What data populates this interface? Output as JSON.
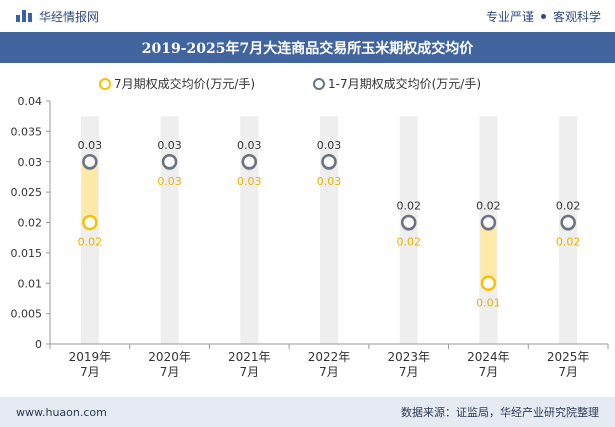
{
  "header": {
    "brand": "华经情报网",
    "tags": [
      "专业严谨",
      "客观科学"
    ]
  },
  "footer": {
    "website": "www.huaon.com",
    "source": "数据来源：证监局，华经产业研究院整理"
  },
  "colors": {
    "july": "#f5c400",
    "ytd": "#ffffff",
    "ytd_stroke": "#6b7286",
    "column": "#eeeeee",
    "band": "#fde9a8",
    "title_band": "#41649f",
    "footer": "#e6ebf3"
  },
  "chart_data": {
    "type": "scatter",
    "title": "2019-2025年7月大连商品交易所玉米期权成交均价",
    "categories": [
      "2019年\n7月",
      "2020年\n7月",
      "2021年\n7月",
      "2022年\n7月",
      "2023年\n7月",
      "2024年\n7月",
      "2025年\n7月"
    ],
    "series": [
      {
        "name": "7月期权成交均价(万元/手)",
        "values": [
          0.02,
          0.03,
          0.03,
          0.03,
          0.02,
          0.01,
          0.02
        ],
        "labels": [
          "0.02",
          "0.03",
          "0.03",
          "0.03",
          "0.02",
          "0.01",
          "0.02"
        ]
      },
      {
        "name": "1-7月期权成交均价(万元/手)",
        "values": [
          0.03,
          0.03,
          0.03,
          0.03,
          0.02,
          0.02,
          0.02
        ],
        "labels": [
          "0.03",
          "0.03",
          "0.03",
          "0.03",
          "0.02",
          "0.02",
          "0.02"
        ]
      }
    ],
    "y_ticks": [
      "0",
      "0.005",
      "0.01",
      "0.015",
      "0.02",
      "0.025",
      "0.03",
      "0.035",
      "0.04"
    ],
    "ylim": [
      0,
      0.04
    ],
    "legend_position": "top-center",
    "grid": false
  }
}
